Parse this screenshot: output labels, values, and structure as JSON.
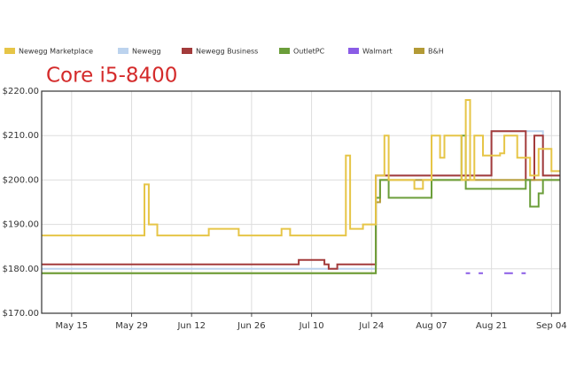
{
  "chart_data": {
    "type": "step-line",
    "title": "Core i5-8400",
    "xlim": [
      "May 08",
      "Sep 06"
    ],
    "xticks": [
      "May 15",
      "May 29",
      "Jun 12",
      "Jun 26",
      "Jul 10",
      "Jul 24",
      "Aug 07",
      "Aug 21",
      "Sep 04"
    ],
    "ylim": [
      170,
      220
    ],
    "yticks": [
      {
        "value": 170,
        "label": "$170.00"
      },
      {
        "value": 180,
        "label": "$180.00"
      },
      {
        "value": 190,
        "label": "$190.00"
      },
      {
        "value": 200,
        "label": "$200.00"
      },
      {
        "value": 210,
        "label": "$210.00"
      },
      {
        "value": 220,
        "label": "$220.00"
      }
    ],
    "grid": true,
    "legend": "top",
    "series": [
      {
        "name": "Newegg",
        "color": "#bcd3ee",
        "x": [
          "May 08",
          "Jul 24",
          "Jul 25",
          "Aug 21",
          "Sep 02",
          "Sep 06"
        ],
        "values": [
          180,
          180,
          201,
          211,
          201,
          201
        ]
      },
      {
        "name": "Newegg Business",
        "color": "#a33b3b",
        "x": [
          "May 08",
          "Jul 07",
          "Jul 13",
          "Jul 14",
          "Jul 16",
          "Jul 24",
          "Jul 25",
          "Aug 21",
          "Aug 29",
          "Aug 31",
          "Sep 02",
          "Sep 06"
        ],
        "values": [
          181,
          182,
          181,
          180,
          181,
          181,
          201,
          211,
          200,
          210,
          201,
          201
        ]
      },
      {
        "name": "B&H",
        "color": "#b39a36",
        "x": [
          "May 08",
          "Jul 24",
          "Jul 25",
          "Jul 26",
          "Sep 06"
        ],
        "values": [
          179,
          179,
          195,
          200,
          200
        ]
      },
      {
        "name": "OutletPC",
        "color": "#6b9e3a",
        "x": [
          "May 08",
          "Jul 24",
          "Jul 25",
          "Jul 26",
          "Jul 28",
          "Aug 07",
          "Aug 14",
          "Aug 15",
          "Aug 29",
          "Aug 30",
          "Sep 01",
          "Sep 02",
          "Sep 06"
        ],
        "values": [
          179,
          179,
          196,
          200,
          196,
          200,
          210,
          198,
          200,
          194,
          197,
          200,
          200
        ]
      },
      {
        "name": "Newegg Marketplace",
        "color": "#e6c547",
        "x": [
          "May 08",
          "Jun 01",
          "Jun 02",
          "Jun 04",
          "Jun 16",
          "Jun 23",
          "Jul 03",
          "Jul 05",
          "Jul 18",
          "Jul 19",
          "Jul 22",
          "Jul 25",
          "Jul 27",
          "Jul 28",
          "Aug 03",
          "Aug 05",
          "Aug 07",
          "Aug 09",
          "Aug 10",
          "Aug 14",
          "Aug 15",
          "Aug 16",
          "Aug 17",
          "Aug 19",
          "Aug 23",
          "Aug 24",
          "Aug 27",
          "Aug 30",
          "Sep 01",
          "Sep 04",
          "Sep 06"
        ],
        "values": [
          187.5,
          199,
          190,
          187.5,
          189,
          187.5,
          189,
          187.5,
          205.5,
          189,
          190,
          201,
          210,
          200,
          198,
          200,
          210,
          205,
          210,
          200,
          218,
          200,
          210,
          205.5,
          206,
          210,
          205,
          201,
          207,
          202,
          202
        ]
      },
      {
        "name": "Walmart",
        "color": "#8a5ce6",
        "x": [
          "Aug 15",
          "Aug 16",
          "Aug 18",
          "Aug 19",
          "Aug 24",
          "Aug 26",
          "Aug 28",
          "Aug 29"
        ],
        "values": [
          179,
          null,
          179,
          null,
          179,
          null,
          179,
          null
        ]
      }
    ]
  }
}
